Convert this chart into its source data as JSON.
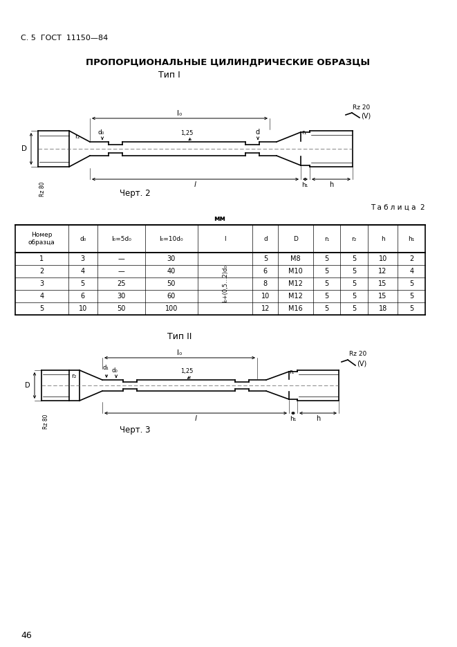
{
  "page_header": "С. 5  ГОСТ  11150—84",
  "main_title": "ПРОПОРЦИОНАЛЬНЫЕ ЦИЛИНДРИЧЕСКИЕ ОБРАЗЦЫ",
  "type1_label": "Тип I",
  "type2_label": "Тип II",
  "chert2_label": "Черт. 2",
  "chert3_label": "Черт. 3",
  "table_label": "Т а б л и ц а  2",
  "mm_label": "мм",
  "page_number": "46",
  "header_row": [
    "Номер\nобразца",
    "d₀",
    "l₀=5d₀",
    "l₀=10d₀",
    "l",
    "d",
    "D",
    "r₁",
    "r₂",
    "h",
    "h₁"
  ],
  "table_rows": [
    [
      "1",
      "3",
      "—",
      "30",
      "",
      "5",
      "M8",
      "5",
      "5",
      "10",
      "2"
    ],
    [
      "2",
      "4",
      "—",
      "40",
      "",
      "6",
      "M10",
      "5",
      "5",
      "12",
      "4"
    ],
    [
      "3",
      "5",
      "25",
      "50",
      "",
      "8",
      "M12",
      "5",
      "5",
      "15",
      "5"
    ],
    [
      "4",
      "6",
      "30",
      "60",
      "",
      "10",
      "M12",
      "5",
      "5",
      "15",
      "5"
    ],
    [
      "5",
      "10",
      "50",
      "100",
      "",
      "12",
      "M16",
      "5",
      "5",
      "18",
      "5"
    ]
  ],
  "l_col_text": "l₀+(0,5…2)d₀",
  "bg_color": "#ffffff",
  "line_color": "#000000",
  "text_color": "#000000"
}
